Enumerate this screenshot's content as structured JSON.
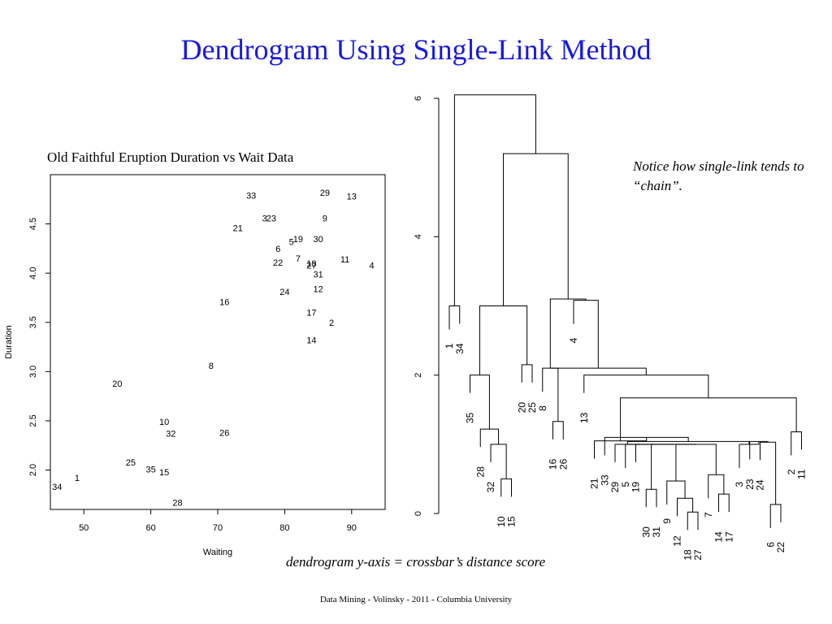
{
  "slide": {
    "title": "Dendrogram Using Single-Link Method",
    "note": "Notice how single-link tends to “chain”.",
    "caption": "dendrogram y-axis = crossbar’s distance score",
    "footer": "Data Mining - Volinsky - 2011 -  Columbia University"
  },
  "chart_data": [
    {
      "type": "scatter",
      "title": "Old Faithful Eruption Duration vs Wait Data",
      "xlabel": "Waiting",
      "ylabel": "Duration",
      "xticks": [
        50,
        60,
        70,
        80,
        90
      ],
      "yticks": [
        2.0,
        2.5,
        3.0,
        3.5,
        4.0,
        4.5
      ],
      "xlim": [
        45,
        95
      ],
      "ylim": [
        1.6,
        5.0
      ],
      "grid": false,
      "points": [
        {
          "label": "1",
          "x": 49,
          "y": 1.92
        },
        {
          "label": "2",
          "x": 87,
          "y": 3.5
        },
        {
          "label": "3",
          "x": 77,
          "y": 4.56
        },
        {
          "label": "4",
          "x": 93,
          "y": 4.08
        },
        {
          "label": "5",
          "x": 81,
          "y": 4.32
        },
        {
          "label": "6",
          "x": 79,
          "y": 4.25
        },
        {
          "label": "7",
          "x": 82,
          "y": 4.15
        },
        {
          "label": "8",
          "x": 69,
          "y": 3.06
        },
        {
          "label": "9",
          "x": 86,
          "y": 4.56
        },
        {
          "label": "10",
          "x": 62,
          "y": 2.49
        },
        {
          "label": "11",
          "x": 89,
          "y": 4.14
        },
        {
          "label": "12",
          "x": 85,
          "y": 3.84
        },
        {
          "label": "13",
          "x": 90,
          "y": 4.78
        },
        {
          "label": "14",
          "x": 84,
          "y": 3.32
        },
        {
          "label": "15",
          "x": 62,
          "y": 1.98
        },
        {
          "label": "16",
          "x": 71,
          "y": 3.71
        },
        {
          "label": "17",
          "x": 84,
          "y": 3.6
        },
        {
          "label": "18",
          "x": 84,
          "y": 4.1
        },
        {
          "label": "19",
          "x": 82,
          "y": 4.35
        },
        {
          "label": "20",
          "x": 55,
          "y": 2.88
        },
        {
          "label": "21",
          "x": 73,
          "y": 4.46
        },
        {
          "label": "22",
          "x": 79,
          "y": 4.11
        },
        {
          "label": "23",
          "x": 78,
          "y": 4.56
        },
        {
          "label": "24",
          "x": 80,
          "y": 3.81
        },
        {
          "label": "25",
          "x": 57,
          "y": 2.08
        },
        {
          "label": "26",
          "x": 71,
          "y": 2.38
        },
        {
          "label": "27",
          "x": 84,
          "y": 4.08
        },
        {
          "label": "28",
          "x": 64,
          "y": 1.67
        },
        {
          "label": "29",
          "x": 86,
          "y": 4.82
        },
        {
          "label": "30",
          "x": 85,
          "y": 4.35
        },
        {
          "label": "31",
          "x": 85,
          "y": 3.99
        },
        {
          "label": "32",
          "x": 63,
          "y": 2.37
        },
        {
          "label": "33",
          "x": 75,
          "y": 4.79
        },
        {
          "label": "34",
          "x": 46,
          "y": 1.83
        },
        {
          "label": "35",
          "x": 60,
          "y": 2.01
        }
      ]
    },
    {
      "type": "dendrogram",
      "method": "single-link",
      "ylim": [
        0,
        6
      ],
      "yticks": [
        0,
        2,
        4,
        6
      ],
      "leaves": [
        "1",
        "34",
        "35",
        "28",
        "32",
        "10",
        "15",
        "20",
        "25",
        "8",
        "16",
        "26",
        "4",
        "13",
        "21",
        "33",
        "29",
        "5",
        "19",
        "30",
        "31",
        "9",
        "12",
        "18",
        "27",
        "7",
        "14",
        "17",
        "3",
        "23",
        "24",
        "6",
        "22",
        "2",
        "11"
      ],
      "merges": [
        {
          "a": "1",
          "b": "34",
          "h": 3.0
        },
        {
          "a": "10",
          "b": "15",
          "h": 0.5
        },
        {
          "a": "32",
          "b": "m2",
          "h": 1.0
        },
        {
          "a": "28",
          "b": "m3",
          "h": 1.22
        },
        {
          "a": "35",
          "b": "m4",
          "h": 2.0
        },
        {
          "a": "20",
          "b": "25",
          "h": 2.15
        },
        {
          "a": "m5",
          "b": "m6",
          "h": 3.0
        },
        {
          "a": "16",
          "b": "26",
          "h": 1.33
        },
        {
          "a": "8",
          "b": "m8",
          "h": 2.1
        },
        {
          "a": "18",
          "b": "27",
          "h": 0.02
        },
        {
          "a": "12",
          "b": "m10",
          "h": 0.22
        },
        {
          "a": "9",
          "b": "m11",
          "h": 0.47
        },
        {
          "a": "14",
          "b": "17",
          "h": 0.28
        },
        {
          "a": "7",
          "b": "m13",
          "h": 0.56
        },
        {
          "a": "m12",
          "b": "m14",
          "h": 1.0
        },
        {
          "a": "30",
          "b": "31",
          "h": 0.35
        },
        {
          "a": "m16",
          "b": "m15",
          "h": 1.0
        },
        {
          "a": "19",
          "b": "m17",
          "h": 1.0
        },
        {
          "a": "5",
          "b": "m18",
          "h": 1.0
        },
        {
          "a": "29",
          "b": "m19",
          "h": 1.0
        },
        {
          "a": "6",
          "b": "22",
          "h": 0.13
        },
        {
          "a": "24",
          "b": "m21",
          "h": 1.03
        },
        {
          "a": "23",
          "b": "m22",
          "h": 1.04
        },
        {
          "a": "3",
          "b": "m23",
          "h": 1.0
        },
        {
          "a": "m20",
          "b": "m24",
          "h": 1.04
        },
        {
          "a": "33",
          "b": "m25",
          "h": 1.1
        },
        {
          "a": "21",
          "b": "m26",
          "h": 1.05
        },
        {
          "a": "2",
          "b": "11",
          "h": 1.18
        },
        {
          "a": "m27",
          "b": "m28",
          "h": 1.67
        },
        {
          "a": "13",
          "b": "m29",
          "h": 2.0
        },
        {
          "a": "m30",
          "b": "m9",
          "h": 2.1
        },
        {
          "a": "4",
          "b": "m31",
          "h": 3.08
        },
        {
          "a": "m9",
          "b": "m32",
          "h": 3.1
        },
        {
          "a": "m7",
          "b": "m33",
          "h": 5.2
        },
        {
          "a": "m1",
          "b": "m34",
          "h": 6.05
        }
      ]
    }
  ]
}
